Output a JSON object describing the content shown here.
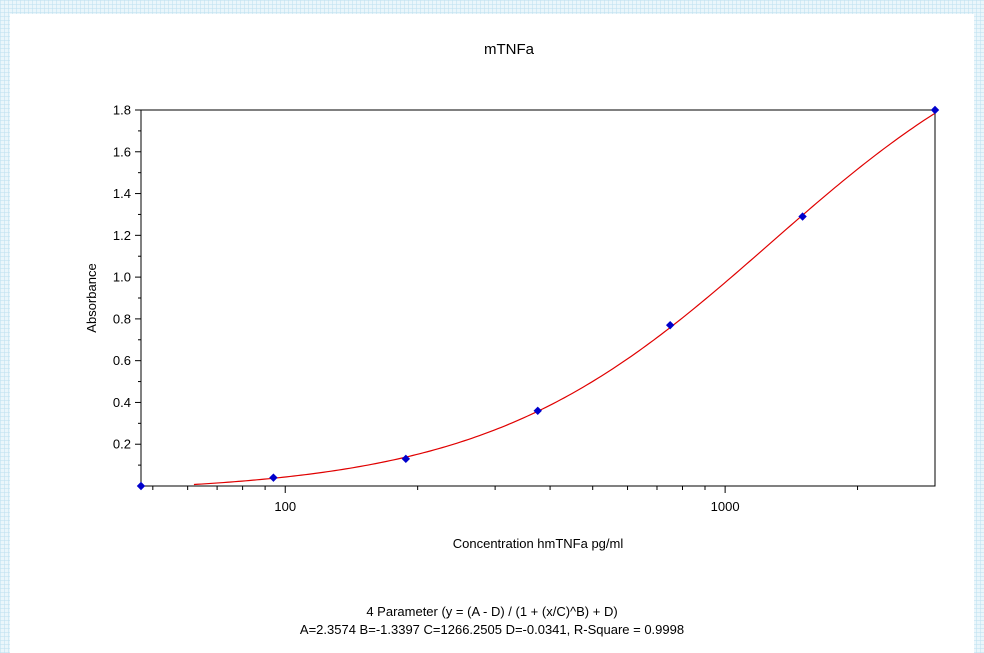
{
  "chart_data": {
    "type": "scatter",
    "title": "mTNFa",
    "xlabel": "Concentration hmTNFa pg/ml",
    "ylabel": "Absorbance",
    "xscale": "log",
    "xlim": [
      47,
      3000
    ],
    "ylim": [
      0,
      1.8
    ],
    "x_ticks": [
      100,
      1000
    ],
    "x_tick_labels": [
      "100",
      "1000"
    ],
    "y_ticks": [
      0.2,
      0.4,
      0.6,
      0.8,
      1.0,
      1.2,
      1.4,
      1.6,
      1.8
    ],
    "y_tick_labels": [
      "0.2",
      "0.4",
      "0.6",
      "0.8",
      "1.0",
      "1.2",
      "1.4",
      "1.6",
      "1.8"
    ],
    "grid": false,
    "colors": {
      "points": "#0000cc",
      "fit_curve": "#e00000"
    },
    "series": [
      {
        "type": "scatter",
        "x": [
          47,
          94,
          188,
          375,
          750,
          1500,
          3000
        ],
        "y": [
          0.0,
          0.04,
          0.13,
          0.36,
          0.77,
          1.29,
          1.8
        ]
      }
    ],
    "fit": {
      "model": "4 Parameter",
      "A": 2.3574,
      "B": -1.3397,
      "C": 1266.2505,
      "D": -0.0341,
      "x_range": [
        62,
        3000
      ]
    },
    "equation_line": "4 Parameter (y = (A - D) / (1 + (x/C)^B) + D)",
    "params_line": "A=2.3574  B=-1.3397  C=1266.2505  D=-0.0341, R-Square = 0.9998"
  }
}
